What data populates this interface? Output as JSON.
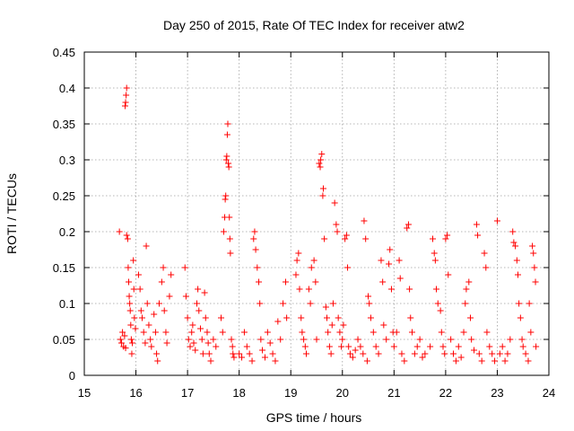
{
  "chart_data": {
    "type": "scatter",
    "title": "Day 250 of 2015, Rate Of TEC Index for receiver atw2",
    "xlabel": "GPS time / hours",
    "ylabel": "ROTI / TECUs",
    "xlim": [
      15,
      24
    ],
    "ylim": [
      0,
      0.45
    ],
    "x_ticks": [
      15,
      16,
      17,
      18,
      19,
      20,
      21,
      22,
      23,
      24
    ],
    "x_tick_labels": [
      "15",
      "16",
      "17",
      "18",
      "19",
      "20",
      "21",
      "22",
      "23",
      "24"
    ],
    "y_ticks": [
      0,
      0.05,
      0.1,
      0.15,
      0.2,
      0.25,
      0.3,
      0.35,
      0.4,
      0.45
    ],
    "y_tick_labels": [
      "0",
      "0.05",
      "0.1",
      "0.15",
      "0.2",
      "0.25",
      "0.3",
      "0.35",
      "0.4",
      "0.45"
    ],
    "grid": true,
    "marker": "+",
    "color": "#ff0000",
    "series": [
      {
        "name": "ROTI",
        "points": [
          [
            15.68,
            0.2
          ],
          [
            15.7,
            0.05
          ],
          [
            15.72,
            0.045
          ],
          [
            15.74,
            0.06
          ],
          [
            15.76,
            0.04
          ],
          [
            15.78,
            0.055
          ],
          [
            15.8,
            0.038
          ],
          [
            15.79,
            0.375
          ],
          [
            15.8,
            0.38
          ],
          [
            15.81,
            0.39
          ],
          [
            15.82,
            0.4
          ],
          [
            15.82,
            0.195
          ],
          [
            15.84,
            0.19
          ],
          [
            15.85,
            0.15
          ],
          [
            15.86,
            0.13
          ],
          [
            15.87,
            0.11
          ],
          [
            15.88,
            0.1
          ],
          [
            15.89,
            0.09
          ],
          [
            15.9,
            0.07
          ],
          [
            15.91,
            0.05
          ],
          [
            15.92,
            0.03
          ],
          [
            15.93,
            0.045
          ],
          [
            15.95,
            0.16
          ],
          [
            15.96,
            0.12
          ],
          [
            15.97,
            0.08
          ],
          [
            15.99,
            0.065
          ],
          [
            16.05,
            0.14
          ],
          [
            16.08,
            0.12
          ],
          [
            16.1,
            0.09
          ],
          [
            16.12,
            0.08
          ],
          [
            16.15,
            0.06
          ],
          [
            16.18,
            0.045
          ],
          [
            16.2,
            0.18
          ],
          [
            16.22,
            0.1
          ],
          [
            16.25,
            0.07
          ],
          [
            16.28,
            0.05
          ],
          [
            16.3,
            0.04
          ],
          [
            16.35,
            0.085
          ],
          [
            16.38,
            0.06
          ],
          [
            16.4,
            0.03
          ],
          [
            16.42,
            0.02
          ],
          [
            16.45,
            0.1
          ],
          [
            16.5,
            0.13
          ],
          [
            16.53,
            0.15
          ],
          [
            16.55,
            0.09
          ],
          [
            16.58,
            0.06
          ],
          [
            16.6,
            0.045
          ],
          [
            16.65,
            0.11
          ],
          [
            16.68,
            0.14
          ],
          [
            16.95,
            0.15
          ],
          [
            16.97,
            0.11
          ],
          [
            17.0,
            0.08
          ],
          [
            17.02,
            0.05
          ],
          [
            17.05,
            0.04
          ],
          [
            17.08,
            0.06
          ],
          [
            17.1,
            0.07
          ],
          [
            17.12,
            0.045
          ],
          [
            17.15,
            0.035
          ],
          [
            17.18,
            0.1
          ],
          [
            17.2,
            0.12
          ],
          [
            17.22,
            0.09
          ],
          [
            17.25,
            0.065
          ],
          [
            17.28,
            0.05
          ],
          [
            17.3,
            0.03
          ],
          [
            17.33,
            0.115
          ],
          [
            17.35,
            0.08
          ],
          [
            17.38,
            0.06
          ],
          [
            17.4,
            0.045
          ],
          [
            17.42,
            0.03
          ],
          [
            17.45,
            0.02
          ],
          [
            17.5,
            0.05
          ],
          [
            17.55,
            0.04
          ],
          [
            17.65,
            0.08
          ],
          [
            17.68,
            0.06
          ],
          [
            17.7,
            0.2
          ],
          [
            17.72,
            0.22
          ],
          [
            17.73,
            0.245
          ],
          [
            17.74,
            0.25
          ],
          [
            17.75,
            0.3
          ],
          [
            17.76,
            0.305
          ],
          [
            17.77,
            0.335
          ],
          [
            17.78,
            0.35
          ],
          [
            17.79,
            0.295
          ],
          [
            17.8,
            0.29
          ],
          [
            17.81,
            0.22
          ],
          [
            17.82,
            0.19
          ],
          [
            17.83,
            0.17
          ],
          [
            17.85,
            0.05
          ],
          [
            17.87,
            0.04
          ],
          [
            17.88,
            0.03
          ],
          [
            17.9,
            0.025
          ],
          [
            18.0,
            0.03
          ],
          [
            18.05,
            0.025
          ],
          [
            18.1,
            0.06
          ],
          [
            18.15,
            0.04
          ],
          [
            18.2,
            0.03
          ],
          [
            18.25,
            0.02
          ],
          [
            18.28,
            0.19
          ],
          [
            18.3,
            0.2
          ],
          [
            18.32,
            0.175
          ],
          [
            18.35,
            0.15
          ],
          [
            18.38,
            0.13
          ],
          [
            18.4,
            0.1
          ],
          [
            18.42,
            0.05
          ],
          [
            18.45,
            0.035
          ],
          [
            18.5,
            0.025
          ],
          [
            18.55,
            0.06
          ],
          [
            18.6,
            0.045
          ],
          [
            18.65,
            0.03
          ],
          [
            18.7,
            0.02
          ],
          [
            18.75,
            0.075
          ],
          [
            18.8,
            0.05
          ],
          [
            18.85,
            0.1
          ],
          [
            18.9,
            0.13
          ],
          [
            18.92,
            0.08
          ],
          [
            19.1,
            0.14
          ],
          [
            19.12,
            0.16
          ],
          [
            19.15,
            0.17
          ],
          [
            19.17,
            0.12
          ],
          [
            19.2,
            0.08
          ],
          [
            19.22,
            0.06
          ],
          [
            19.25,
            0.05
          ],
          [
            19.28,
            0.04
          ],
          [
            19.3,
            0.03
          ],
          [
            19.35,
            0.12
          ],
          [
            19.38,
            0.1
          ],
          [
            19.4,
            0.15
          ],
          [
            19.45,
            0.16
          ],
          [
            19.48,
            0.13
          ],
          [
            19.5,
            0.05
          ],
          [
            19.55,
            0.295
          ],
          [
            19.57,
            0.29
          ],
          [
            19.58,
            0.3
          ],
          [
            19.6,
            0.308
          ],
          [
            19.62,
            0.25
          ],
          [
            19.63,
            0.26
          ],
          [
            19.65,
            0.19
          ],
          [
            19.68,
            0.095
          ],
          [
            19.7,
            0.08
          ],
          [
            19.72,
            0.06
          ],
          [
            19.75,
            0.04
          ],
          [
            19.78,
            0.03
          ],
          [
            19.8,
            0.07
          ],
          [
            19.82,
            0.1
          ],
          [
            19.85,
            0.24
          ],
          [
            19.88,
            0.21
          ],
          [
            19.9,
            0.2
          ],
          [
            19.92,
            0.08
          ],
          [
            19.95,
            0.06
          ],
          [
            19.98,
            0.04
          ],
          [
            20.0,
            0.05
          ],
          [
            20.02,
            0.07
          ],
          [
            20.05,
            0.19
          ],
          [
            20.08,
            0.195
          ],
          [
            20.1,
            0.15
          ],
          [
            20.12,
            0.04
          ],
          [
            20.15,
            0.03
          ],
          [
            20.2,
            0.025
          ],
          [
            20.25,
            0.035
          ],
          [
            20.3,
            0.05
          ],
          [
            20.35,
            0.04
          ],
          [
            20.4,
            0.03
          ],
          [
            20.42,
            0.215
          ],
          [
            20.45,
            0.19
          ],
          [
            20.48,
            0.02
          ],
          [
            20.5,
            0.11
          ],
          [
            20.52,
            0.1
          ],
          [
            20.55,
            0.08
          ],
          [
            20.6,
            0.06
          ],
          [
            20.65,
            0.04
          ],
          [
            20.7,
            0.03
          ],
          [
            20.75,
            0.16
          ],
          [
            20.78,
            0.13
          ],
          [
            20.8,
            0.07
          ],
          [
            20.85,
            0.05
          ],
          [
            20.9,
            0.155
          ],
          [
            20.92,
            0.175
          ],
          [
            20.95,
            0.12
          ],
          [
            20.98,
            0.06
          ],
          [
            21.0,
            0.04
          ],
          [
            21.05,
            0.06
          ],
          [
            21.1,
            0.16
          ],
          [
            21.12,
            0.135
          ],
          [
            21.15,
            0.03
          ],
          [
            21.2,
            0.02
          ],
          [
            21.25,
            0.205
          ],
          [
            21.28,
            0.21
          ],
          [
            21.3,
            0.12
          ],
          [
            21.32,
            0.08
          ],
          [
            21.35,
            0.06
          ],
          [
            21.4,
            0.03
          ],
          [
            21.45,
            0.04
          ],
          [
            21.5,
            0.05
          ],
          [
            21.55,
            0.025
          ],
          [
            21.6,
            0.03
          ],
          [
            21.7,
            0.04
          ],
          [
            21.75,
            0.19
          ],
          [
            21.78,
            0.17
          ],
          [
            21.8,
            0.16
          ],
          [
            21.82,
            0.12
          ],
          [
            21.85,
            0.1
          ],
          [
            21.9,
            0.09
          ],
          [
            21.92,
            0.06
          ],
          [
            21.95,
            0.04
          ],
          [
            21.98,
            0.03
          ],
          [
            22.0,
            0.19
          ],
          [
            22.03,
            0.195
          ],
          [
            22.05,
            0.14
          ],
          [
            22.1,
            0.05
          ],
          [
            22.15,
            0.03
          ],
          [
            22.2,
            0.02
          ],
          [
            22.25,
            0.04
          ],
          [
            22.3,
            0.025
          ],
          [
            22.35,
            0.06
          ],
          [
            22.38,
            0.1
          ],
          [
            22.4,
            0.12
          ],
          [
            22.45,
            0.13
          ],
          [
            22.48,
            0.08
          ],
          [
            22.5,
            0.05
          ],
          [
            22.55,
            0.035
          ],
          [
            22.6,
            0.21
          ],
          [
            22.62,
            0.195
          ],
          [
            22.65,
            0.03
          ],
          [
            22.7,
            0.02
          ],
          [
            22.75,
            0.17
          ],
          [
            22.78,
            0.15
          ],
          [
            22.8,
            0.06
          ],
          [
            22.85,
            0.04
          ],
          [
            22.9,
            0.03
          ],
          [
            22.95,
            0.02
          ],
          [
            23.0,
            0.215
          ],
          [
            23.05,
            0.03
          ],
          [
            23.1,
            0.04
          ],
          [
            23.15,
            0.02
          ],
          [
            23.2,
            0.03
          ],
          [
            23.25,
            0.05
          ],
          [
            23.3,
            0.2
          ],
          [
            23.32,
            0.185
          ],
          [
            23.35,
            0.18
          ],
          [
            23.38,
            0.16
          ],
          [
            23.4,
            0.14
          ],
          [
            23.42,
            0.1
          ],
          [
            23.45,
            0.08
          ],
          [
            23.48,
            0.05
          ],
          [
            23.5,
            0.04
          ],
          [
            23.55,
            0.03
          ],
          [
            23.6,
            0.02
          ],
          [
            23.62,
            0.1
          ],
          [
            23.65,
            0.06
          ],
          [
            23.68,
            0.18
          ],
          [
            23.7,
            0.17
          ],
          [
            23.72,
            0.15
          ],
          [
            23.74,
            0.13
          ],
          [
            23.75,
            0.04
          ]
        ]
      }
    ]
  }
}
